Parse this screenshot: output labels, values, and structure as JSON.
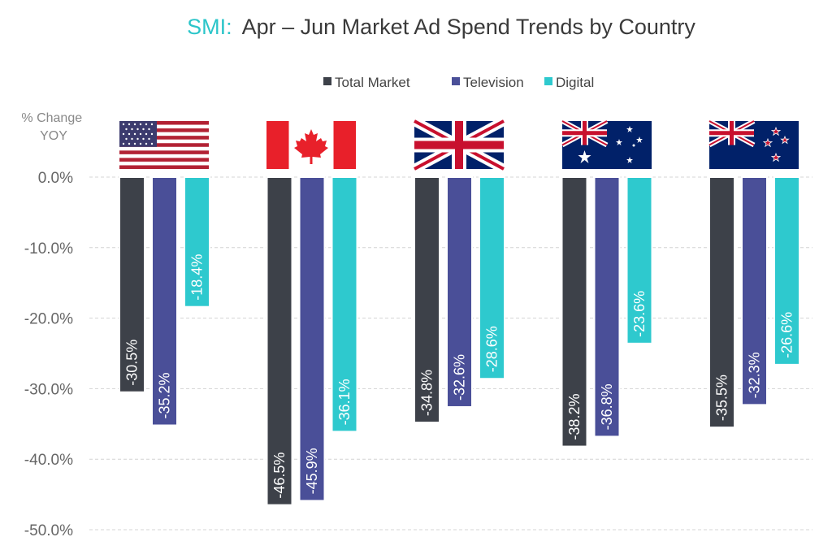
{
  "title": {
    "prefix": "SMI:",
    "text": "Apr – Jun Market Ad Spend Trends by Country"
  },
  "colors": {
    "accent": "#2bc5c9",
    "total_market": "#3d4149",
    "television": "#4a4f98",
    "digital": "#2ec9ce"
  },
  "chart_data": {
    "type": "bar",
    "title": "SMI: Apr – Jun Market Ad Spend Trends by Country",
    "ylabel": "% Change YOY",
    "ylabel_lines": [
      "% Change",
      "YOY"
    ],
    "xlabel": "",
    "categories": [
      "us-flag",
      "canada-flag",
      "uk-flag",
      "australia-flag",
      "new-zealand-flag"
    ],
    "ylim": [
      -50,
      0
    ],
    "yticks": [
      0,
      -10,
      -20,
      -30,
      -40,
      -50
    ],
    "ytick_labels": [
      "0.0%",
      "-10.0%",
      "-20.0%",
      "-30.0%",
      "-40.0%",
      "-50.0%"
    ],
    "grid": true,
    "legend_position": "top-center",
    "series": [
      {
        "name": "Total Market",
        "color": "#3d4149",
        "values": [
          -30.5,
          -46.5,
          -34.8,
          -38.2,
          -35.5
        ],
        "labels": [
          "-30.5%",
          "-46.5%",
          "-34.8%",
          "-38.2%",
          "-35.5%"
        ]
      },
      {
        "name": "Television",
        "color": "#4a4f98",
        "values": [
          -35.2,
          -45.9,
          -32.6,
          -36.8,
          -32.3
        ],
        "labels": [
          "-35.2%",
          "-45.9%",
          "-32.6%",
          "-36.8%",
          "-32.3%"
        ]
      },
      {
        "name": "Digital",
        "color": "#2ec9ce",
        "values": [
          -18.4,
          -36.1,
          -28.6,
          -23.6,
          -26.6
        ],
        "labels": [
          "-18.4%",
          "-36.1%",
          "-28.6%",
          "-23.6%",
          "-26.6%"
        ]
      }
    ]
  }
}
